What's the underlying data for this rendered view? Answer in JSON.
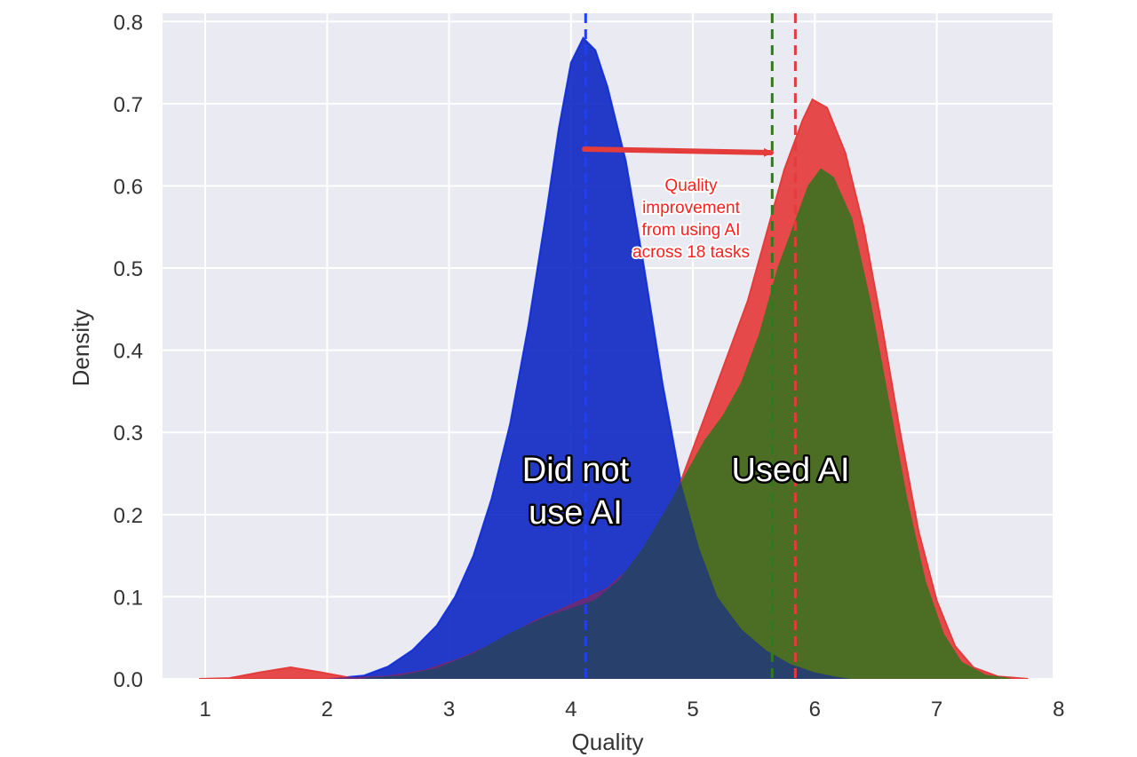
{
  "chart_data": {
    "type": "area",
    "xlabel": "Quality",
    "ylabel": "Density",
    "xlim": [
      0.65,
      7.95
    ],
    "ylim": [
      0,
      0.81
    ],
    "x_ticks": [
      1,
      2,
      3,
      4,
      5,
      6,
      7,
      8
    ],
    "y_ticks": [
      0.0,
      0.1,
      0.2,
      0.3,
      0.4,
      0.5,
      0.6,
      0.7,
      0.8
    ],
    "grid": true,
    "series": [
      {
        "name": "Did not use AI",
        "color": "#1f3ff0",
        "mean": 4.12,
        "points": [
          [
            2.0,
            0.0
          ],
          [
            2.3,
            0.004
          ],
          [
            2.5,
            0.015
          ],
          [
            2.7,
            0.035
          ],
          [
            2.9,
            0.065
          ],
          [
            3.05,
            0.1
          ],
          [
            3.2,
            0.15
          ],
          [
            3.35,
            0.22
          ],
          [
            3.5,
            0.31
          ],
          [
            3.65,
            0.43
          ],
          [
            3.8,
            0.57
          ],
          [
            3.9,
            0.67
          ],
          [
            4.0,
            0.75
          ],
          [
            4.1,
            0.78
          ],
          [
            4.2,
            0.765
          ],
          [
            4.3,
            0.72
          ],
          [
            4.45,
            0.63
          ],
          [
            4.6,
            0.5
          ],
          [
            4.75,
            0.36
          ],
          [
            4.9,
            0.24
          ],
          [
            5.05,
            0.16
          ],
          [
            5.2,
            0.1
          ],
          [
            5.4,
            0.06
          ],
          [
            5.6,
            0.035
          ],
          [
            5.8,
            0.018
          ],
          [
            6.0,
            0.008
          ],
          [
            6.2,
            0.002
          ],
          [
            6.3,
            0.0
          ]
        ]
      },
      {
        "name": "Used AI",
        "color": "#e43b3b",
        "mean": 5.84,
        "points": [
          [
            0.95,
            0.0
          ],
          [
            1.2,
            0.001
          ],
          [
            1.45,
            0.008
          ],
          [
            1.7,
            0.014
          ],
          [
            1.95,
            0.008
          ],
          [
            2.2,
            0.001
          ],
          [
            2.5,
            0.003
          ],
          [
            2.8,
            0.01
          ],
          [
            3.1,
            0.025
          ],
          [
            3.4,
            0.045
          ],
          [
            3.7,
            0.07
          ],
          [
            4.0,
            0.09
          ],
          [
            4.3,
            0.11
          ],
          [
            4.6,
            0.15
          ],
          [
            4.8,
            0.2
          ],
          [
            5.0,
            0.28
          ],
          [
            5.15,
            0.34
          ],
          [
            5.3,
            0.4
          ],
          [
            5.45,
            0.46
          ],
          [
            5.6,
            0.54
          ],
          [
            5.75,
            0.62
          ],
          [
            5.9,
            0.68
          ],
          [
            5.98,
            0.705
          ],
          [
            6.1,
            0.695
          ],
          [
            6.25,
            0.64
          ],
          [
            6.4,
            0.55
          ],
          [
            6.55,
            0.43
          ],
          [
            6.7,
            0.3
          ],
          [
            6.85,
            0.18
          ],
          [
            7.0,
            0.095
          ],
          [
            7.15,
            0.04
          ],
          [
            7.3,
            0.014
          ],
          [
            7.5,
            0.003
          ],
          [
            7.75,
            0.0
          ]
        ]
      },
      {
        "name": "",
        "color": "#4c6e24",
        "mean": 5.65,
        "points": [
          [
            2.3,
            0.0
          ],
          [
            2.6,
            0.003
          ],
          [
            2.9,
            0.012
          ],
          [
            3.2,
            0.03
          ],
          [
            3.5,
            0.055
          ],
          [
            3.8,
            0.075
          ],
          [
            4.0,
            0.085
          ],
          [
            4.2,
            0.095
          ],
          [
            4.4,
            0.12
          ],
          [
            4.6,
            0.16
          ],
          [
            4.8,
            0.21
          ],
          [
            4.95,
            0.25
          ],
          [
            5.1,
            0.29
          ],
          [
            5.25,
            0.32
          ],
          [
            5.4,
            0.36
          ],
          [
            5.55,
            0.42
          ],
          [
            5.7,
            0.5
          ],
          [
            5.85,
            0.56
          ],
          [
            5.95,
            0.6
          ],
          [
            6.05,
            0.62
          ],
          [
            6.15,
            0.61
          ],
          [
            6.3,
            0.56
          ],
          [
            6.45,
            0.46
          ],
          [
            6.6,
            0.34
          ],
          [
            6.75,
            0.22
          ],
          [
            6.9,
            0.12
          ],
          [
            7.05,
            0.055
          ],
          [
            7.2,
            0.02
          ],
          [
            7.4,
            0.004
          ],
          [
            7.6,
            0.0
          ]
        ]
      }
    ],
    "annotations": {
      "did_not_use_line1": "Did not",
      "did_not_use_line2": "use AI",
      "used_ai": "Used AI",
      "note_line1": "Quality",
      "note_line2": "improvement",
      "note_line3": "from using AI",
      "note_line4": "across 18 tasks"
    }
  }
}
